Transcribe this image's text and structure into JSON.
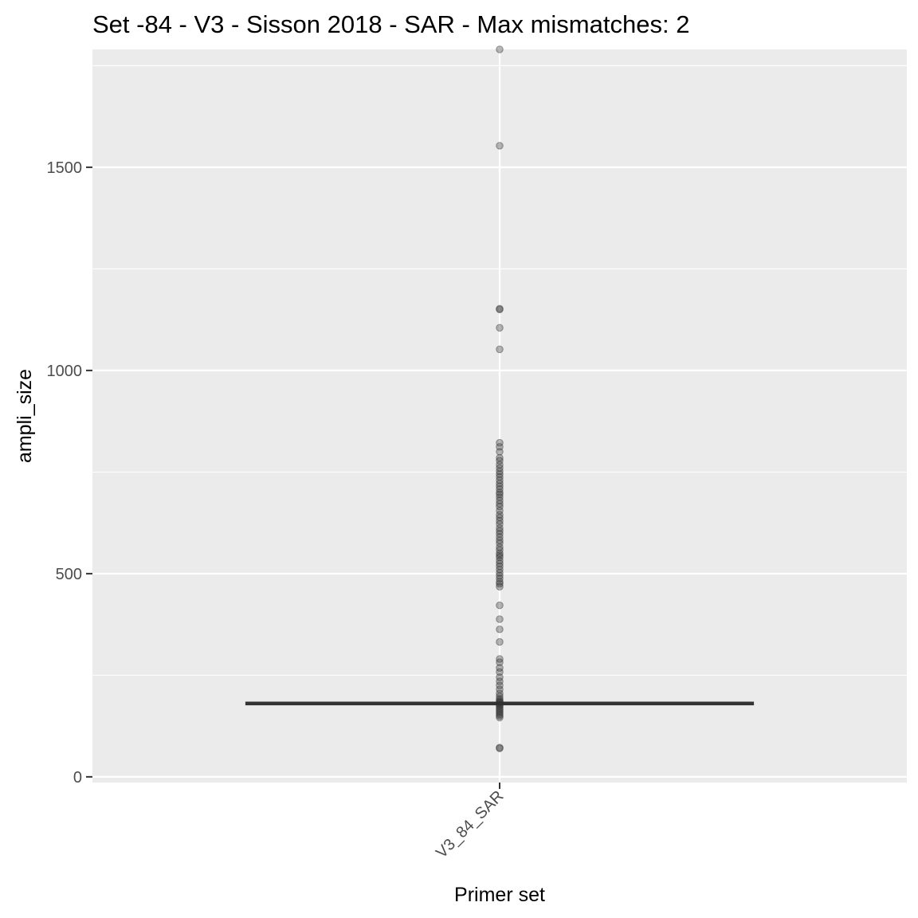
{
  "chart_data": {
    "type": "boxplot",
    "title": "Set -84 - V3 - Sisson 2018 - SAR - Max mismatches: 2",
    "xlabel": "Primer set",
    "ylabel": "ampli_size",
    "categories": [
      "V3_84_SAR"
    ],
    "y_ticks": [
      0,
      500,
      1000,
      1500
    ],
    "ylim": [
      -14,
      1790
    ],
    "grid": true,
    "colors": {
      "panel": "#ebebeb",
      "grid": "#ffffff",
      "box": "#333333",
      "point": "#333333"
    },
    "boxes": [
      {
        "category": "V3_84_SAR",
        "q1": 178,
        "median": 181,
        "q3": 183,
        "whisker_low": 175,
        "whisker_high": 186
      }
    ],
    "points": {
      "category": "V3_84_SAR",
      "values": [
        1790,
        1553,
        1152,
        1150,
        1105,
        1052,
        822,
        812,
        800,
        785,
        778,
        768,
        760,
        752,
        745,
        738,
        730,
        722,
        715,
        708,
        700,
        695,
        688,
        680,
        672,
        665,
        655,
        645,
        638,
        630,
        622,
        612,
        605,
        598,
        590,
        582,
        575,
        565,
        558,
        550,
        545,
        540,
        532,
        525,
        518,
        510,
        502,
        495,
        488,
        480,
        475,
        468,
        422,
        388,
        363,
        332,
        290,
        282,
        268,
        258,
        245,
        235,
        225,
        215,
        205,
        198,
        192,
        188,
        185,
        183,
        180,
        177,
        174,
        170,
        166,
        162,
        158,
        154,
        150,
        146,
        72,
        70
      ]
    }
  }
}
